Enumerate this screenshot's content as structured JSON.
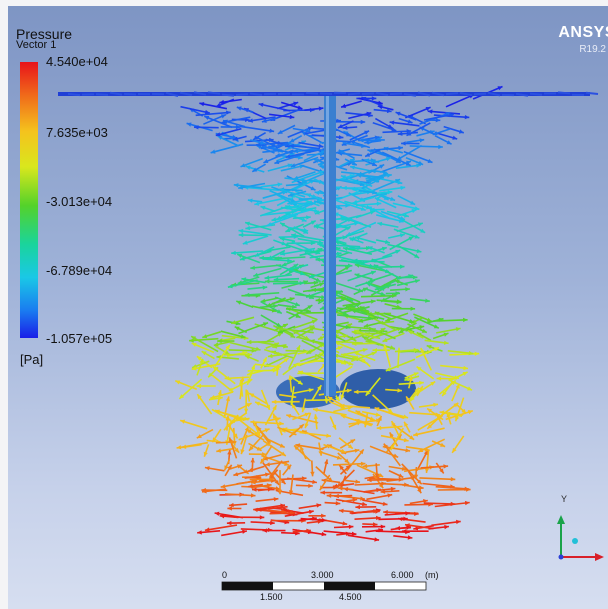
{
  "legend": {
    "title": "Pressure",
    "subtitle": "Vector 1",
    "ticks": [
      "4.540e+04",
      "7.635e+03",
      "-3.013e+04",
      "-6.789e+04",
      "-1.057e+05"
    ],
    "unit": "[Pa]"
  },
  "brand": {
    "name": "ANSYS",
    "version": "R19.2"
  },
  "scale_bar": {
    "top_labels": [
      "0",
      "3.000",
      "6.000",
      "(m)"
    ],
    "bottom_labels": [
      "1.500",
      "4.500"
    ]
  },
  "axes": {
    "y_label": "Y"
  },
  "colors": {
    "high": "#e8131a",
    "mid": "#54d22a",
    "low": "#1a1ee8",
    "shaft": "#3a7fd0"
  }
}
